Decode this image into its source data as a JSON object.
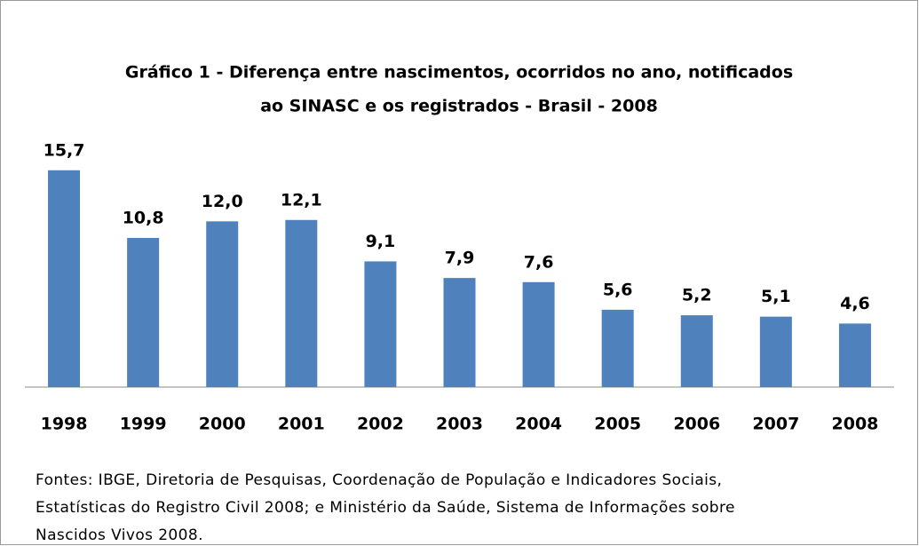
{
  "chart_data": {
    "type": "bar",
    "title": [
      "Gráfico 1 - Diferença entre nascimentos, ocorridos no ano, notificados",
      "ao SINASC e os registrados  - Brasil - 2008"
    ],
    "categories": [
      "1998",
      "1999",
      "2000",
      "2001",
      "2002",
      "2003",
      "2004",
      "2005",
      "2006",
      "2007",
      "2008"
    ],
    "values": [
      15.7,
      10.8,
      12.0,
      12.1,
      9.1,
      7.9,
      7.6,
      5.6,
      5.2,
      5.1,
      4.6
    ],
    "value_labels": [
      "15,7",
      "10,8",
      "12,0",
      "12,1",
      "9,1",
      "7,9",
      "7,6",
      "5,6",
      "5,2",
      "5,1",
      "4,6"
    ],
    "color": "#4f81bd",
    "ylim": [
      0,
      18
    ],
    "source": [
      "Fontes: IBGE, Diretoria de Pesquisas, Coordenação de População e Indicadores Sociais,",
      "Estatísticas do Registro Civil 2008; e Ministério da Saúde, Sistema de Informações sobre",
      "Nascidos Vivos 2008."
    ]
  }
}
